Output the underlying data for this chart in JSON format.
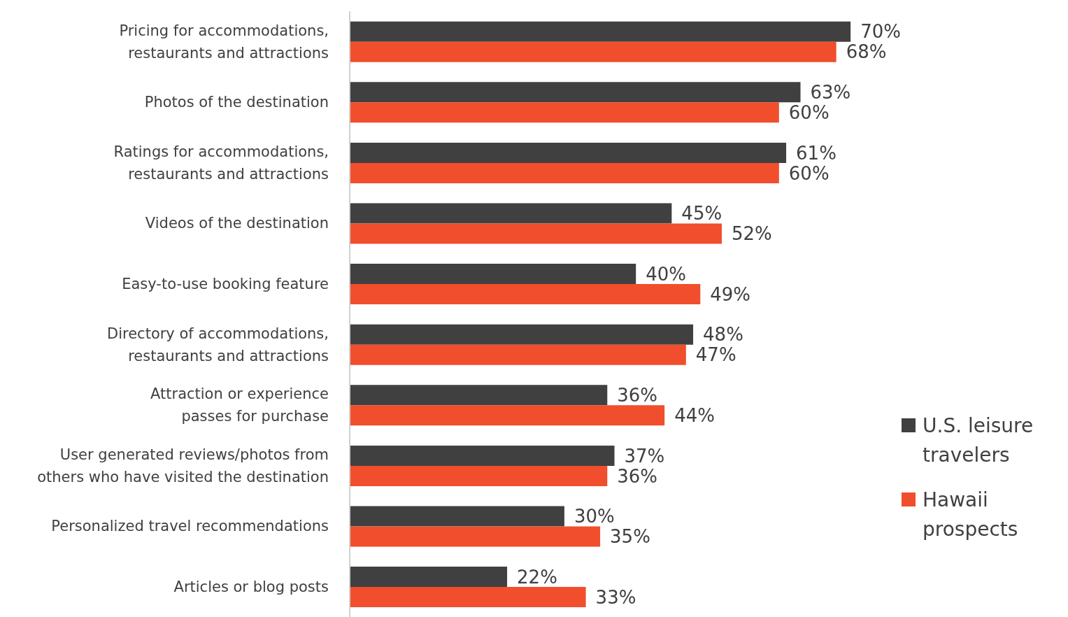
{
  "chart_data": {
    "type": "bar",
    "orientation": "horizontal",
    "categories": [
      "Pricing for accommodations, restaurants and attractions",
      "Photos of the destination",
      "Ratings for accommodations, restaurants and attractions",
      "Videos of the destination",
      "Easy-to-use booking feature",
      "Directory of accommodations, restaurants and attractions",
      "Attraction or experience passes for purchase",
      "User generated reviews/photos from others who have visited the destination",
      "Personalized travel recommendations",
      "Articles or blog posts"
    ],
    "series": [
      {
        "name": "U.S. leisure travelers",
        "color": "#404040",
        "values": [
          70,
          63,
          61,
          45,
          40,
          48,
          36,
          37,
          30,
          22
        ],
        "value_labels": [
          "70%",
          "63%",
          "61%",
          "45%",
          "40%",
          "48%",
          "36%",
          "37%",
          "30%",
          "22%"
        ]
      },
      {
        "name": "Hawaii prospects",
        "color": "#f04e2c",
        "values": [
          68,
          60,
          60,
          52,
          49,
          47,
          44,
          36,
          35,
          33
        ],
        "value_labels": [
          "68%",
          "60%",
          "60%",
          "52%",
          "49%",
          "47%",
          "44%",
          "36%",
          "35%",
          "33%"
        ]
      }
    ],
    "legend": "right",
    "grid": false
  }
}
